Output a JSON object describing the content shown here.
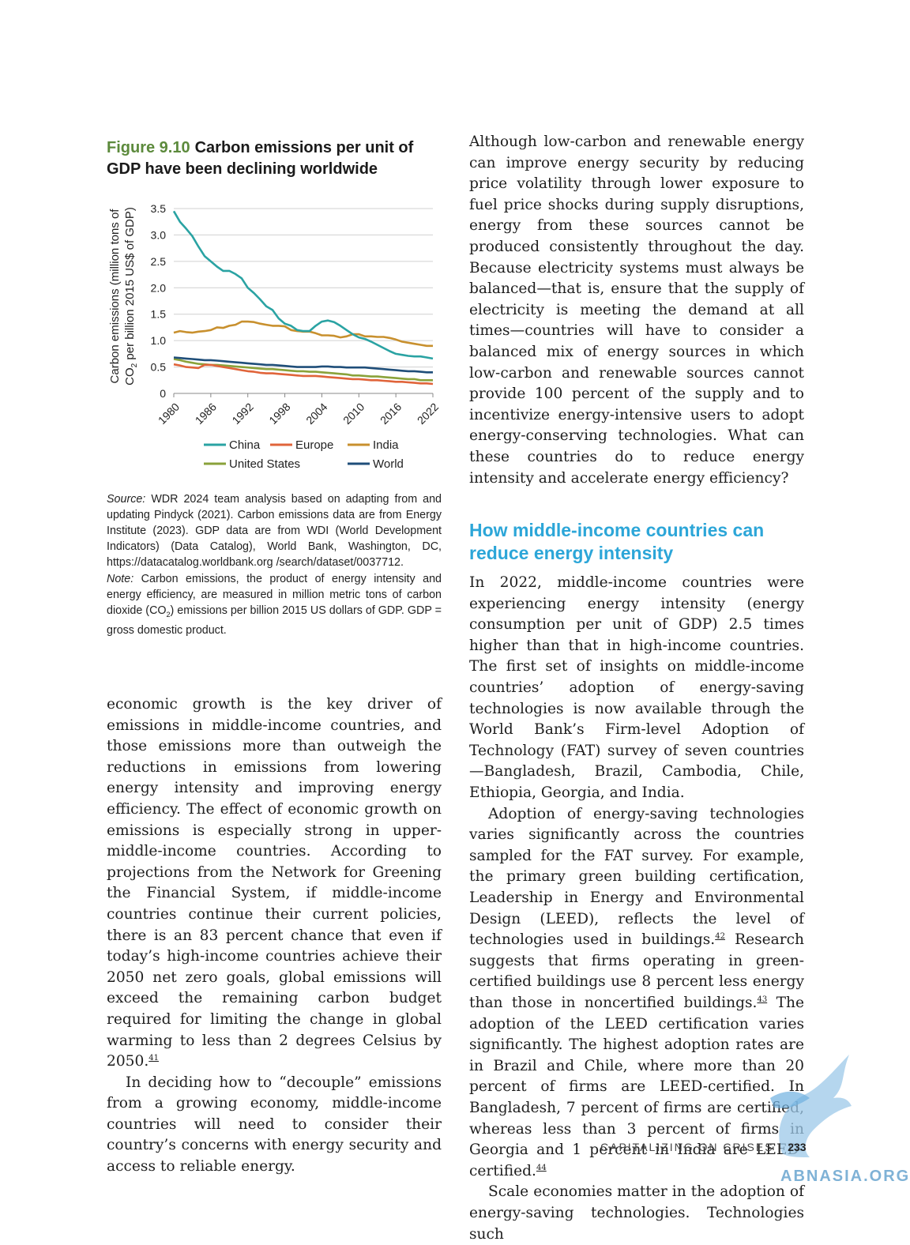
{
  "figure": {
    "number": "Figure 9.10",
    "title": "Carbon emissions per unit of GDP have been declining worldwide"
  },
  "chart_data": {
    "type": "line",
    "ylabel_line1": "Carbon emissions (million tons of",
    "ylabel_line2_pre": "CO",
    "ylabel_line2_sub": "2",
    "ylabel_line2_post": " per billion 2015 US$ of GDP)",
    "xlabel": "",
    "ylim": [
      0,
      3.5
    ],
    "xlim": [
      1980,
      2022
    ],
    "yticks": [
      "0",
      "0.5",
      "1.0",
      "1.5",
      "2.0",
      "2.5",
      "3.0",
      "3.5"
    ],
    "ytick_values": [
      0,
      0.5,
      1.0,
      1.5,
      2.0,
      2.5,
      3.0,
      3.5
    ],
    "xticks": [
      "1980",
      "1986",
      "1992",
      "1998",
      "2004",
      "2010",
      "2016",
      "2022"
    ],
    "xtick_values": [
      1980,
      1986,
      1992,
      1998,
      2004,
      2010,
      2016,
      2022
    ],
    "grid": "horizontal",
    "legend_position": "bottom",
    "x": [
      1980,
      1981,
      1982,
      1983,
      1984,
      1985,
      1986,
      1987,
      1988,
      1989,
      1990,
      1991,
      1992,
      1993,
      1994,
      1995,
      1996,
      1997,
      1998,
      1999,
      2000,
      2001,
      2002,
      2003,
      2004,
      2005,
      2006,
      2007,
      2008,
      2009,
      2010,
      2011,
      2012,
      2013,
      2014,
      2015,
      2016,
      2017,
      2018,
      2019,
      2020,
      2021,
      2022
    ],
    "series": [
      {
        "name": "China",
        "color": "#2aa3a3",
        "values": [
          3.45,
          3.25,
          3.12,
          2.98,
          2.78,
          2.6,
          2.5,
          2.4,
          2.32,
          2.32,
          2.26,
          2.18,
          2.0,
          1.9,
          1.78,
          1.65,
          1.58,
          1.42,
          1.32,
          1.28,
          1.2,
          1.18,
          1.18,
          1.28,
          1.36,
          1.38,
          1.35,
          1.28,
          1.2,
          1.12,
          1.06,
          1.03,
          0.98,
          0.92,
          0.86,
          0.8,
          0.75,
          0.73,
          0.71,
          0.7,
          0.7,
          0.68,
          0.66
        ]
      },
      {
        "name": "Europe",
        "color": "#e0643a",
        "values": [
          0.55,
          0.53,
          0.5,
          0.49,
          0.48,
          0.54,
          0.54,
          0.52,
          0.5,
          0.48,
          0.46,
          0.44,
          0.42,
          0.41,
          0.39,
          0.38,
          0.38,
          0.37,
          0.36,
          0.35,
          0.34,
          0.33,
          0.33,
          0.33,
          0.32,
          0.31,
          0.3,
          0.29,
          0.28,
          0.27,
          0.27,
          0.26,
          0.25,
          0.25,
          0.24,
          0.23,
          0.22,
          0.22,
          0.21,
          0.2,
          0.19,
          0.19,
          0.18
        ]
      },
      {
        "name": "India",
        "color": "#c8902e",
        "values": [
          1.15,
          1.18,
          1.16,
          1.15,
          1.17,
          1.18,
          1.2,
          1.25,
          1.24,
          1.28,
          1.3,
          1.36,
          1.36,
          1.35,
          1.32,
          1.3,
          1.28,
          1.28,
          1.27,
          1.2,
          1.18,
          1.17,
          1.17,
          1.14,
          1.1,
          1.1,
          1.09,
          1.06,
          1.08,
          1.12,
          1.12,
          1.08,
          1.08,
          1.07,
          1.07,
          1.05,
          1.02,
          0.98,
          0.96,
          0.94,
          0.92,
          0.9,
          0.9
        ]
      },
      {
        "name": "United States",
        "color": "#8aa23a",
        "values": [
          0.65,
          0.63,
          0.6,
          0.58,
          0.56,
          0.55,
          0.54,
          0.54,
          0.53,
          0.52,
          0.51,
          0.5,
          0.49,
          0.48,
          0.47,
          0.46,
          0.46,
          0.45,
          0.44,
          0.43,
          0.42,
          0.42,
          0.41,
          0.41,
          0.4,
          0.39,
          0.38,
          0.37,
          0.36,
          0.34,
          0.34,
          0.33,
          0.32,
          0.32,
          0.31,
          0.3,
          0.29,
          0.28,
          0.27,
          0.27,
          0.25,
          0.25,
          0.25
        ]
      },
      {
        "name": "World",
        "color": "#1f4e79",
        "values": [
          0.68,
          0.67,
          0.66,
          0.65,
          0.64,
          0.63,
          0.63,
          0.62,
          0.61,
          0.6,
          0.59,
          0.58,
          0.57,
          0.56,
          0.55,
          0.54,
          0.54,
          0.53,
          0.52,
          0.51,
          0.5,
          0.5,
          0.5,
          0.5,
          0.51,
          0.51,
          0.5,
          0.5,
          0.49,
          0.49,
          0.49,
          0.49,
          0.48,
          0.47,
          0.46,
          0.45,
          0.44,
          0.43,
          0.42,
          0.42,
          0.41,
          0.4,
          0.4
        ]
      }
    ]
  },
  "source": {
    "source_label": "Source:",
    "source_text": "WDR 2024 team analysis based on adapting from and updating Pindyck (2021). Carbon emissions data are from Energy Institute (2023). GDP data are from WDI (World Development Indicators) (Data Catalog), World Bank, Washington, DC, https://datacatalog.worldbank.org /search/dataset/0037712.",
    "note_label": "Note:",
    "note_text_pre": "Carbon emissions, the product of energy intensity and energy efficiency, are measured in million metric tons of carbon dioxide (CO",
    "note_text_sub": "2",
    "note_text_post": ") emissions per billion 2015 US dollars of GDP. GDP = gross domestic product."
  },
  "left_body": {
    "p1": "economic growth is the key driver of emissions in middle-income countries, and those emissions more than outweigh the reductions in emissions from lowering energy intensity and improving energy efficiency. The effect of economic growth on emissions is especially strong in upper-middle-income countries. According to projections from the Network for Greening the Financial System, if middle-income countries continue their current policies, there is an 83 percent chance that even if today’s high-income countries achieve their 2050 net zero goals, global emissions will exceed the remaining carbon budget required for limiting the change in global warming to less than 2 degrees Celsius by 2050.",
    "p1_ref": "41",
    "p2": "In deciding how to “decouple” emissions from a growing economy, middle-income countries will need to consider their country’s concerns with energy security and access to reliable energy."
  },
  "right_body": {
    "p1": "Although low-carbon and renewable energy can improve energy security by reducing price volatility through lower exposure to fuel price shocks during supply disruptions, energy from these sources cannot be produced consistently throughout the day. Because electricity systems must always be balanced—that is, ensure that the supply of electricity is meeting the demand at all times—countries will have to consider a balanced mix of energy sources in which low-carbon and renewable sources cannot provide 100 percent of the supply and to incentivize energy-intensive users to adopt energy-conserving technologies. What can these countries do to reduce energy intensity and accelerate energy efficiency?",
    "heading": "How middle-income countries can reduce energy intensity",
    "p2": "In 2022, middle-income countries were experiencing energy intensity (energy consumption per unit of GDP) 2.5 times higher than that in high-income countries. The first set of insights on middle-income countries’ adoption of energy-saving technologies is now available through the World Bank’s Firm-level Adoption of Technology (FAT) survey of seven countries—Bangladesh, Brazil, Cambodia, Chile, Ethiopia, Georgia, and India.",
    "p3_a": "Adoption of energy-saving technologies varies significantly across the countries sampled for the FAT survey. For example, the primary green building certification, Leadership in Energy and Environmental Design (LEED), reflects the level of technologies used in buildings.",
    "p3_ref1": "42",
    "p3_b": " Research suggests that firms operating in green-certified buildings use 8 percent less energy than those in noncertified buildings.",
    "p3_ref2": "43",
    "p3_c": " The adoption of the LEED certification varies significantly. The highest adoption rates are in Brazil and Chile, where more than 20 percent of firms are LEED-certified. In Bangladesh, 7 percent of firms are certified, whereas less than 3 percent of firms in Georgia and 1 percent in India are LEED-certified.",
    "p3_ref3": "44",
    "p4": "Scale economies matter in the adoption of energy-saving technologies. Technologies such"
  },
  "footer": {
    "running_head": "CAPITALIZING ON CRISES",
    "separator": "|",
    "page_number": "233"
  },
  "watermark": {
    "text": "ABNASIA.ORG"
  },
  "colors": {
    "figure_number": "#5c8a3c",
    "heading": "#2ca6d8"
  }
}
